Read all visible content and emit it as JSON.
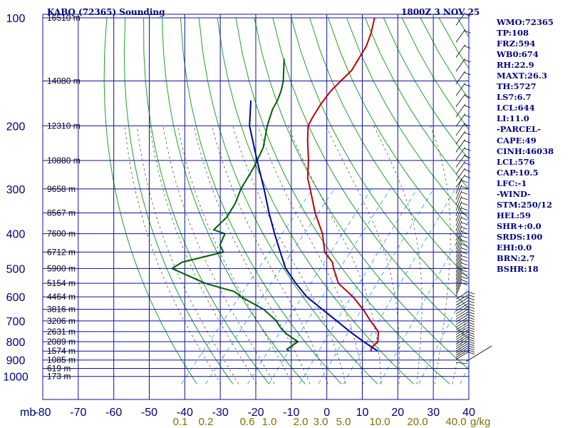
{
  "header": {
    "title": "KABQ (72365) Sounding",
    "datetime": "1800Z  3 NOV 25"
  },
  "parameters": [
    "WMO:72365",
    "TP:108",
    "FRZ:594",
    "WB0:674",
    "RH:22.9",
    "MAXT:26.3",
    "TH:5727",
    "LS7:6.7",
    "LCL:644",
    "LI:11.0",
    "-PARCEL-",
    "CAPE:49",
    "CINH:46038",
    "LCL:576",
    "CAP:10.5",
    "LFC:-1",
    "-WIND-",
    "STM:250/12",
    "HEL:59",
    "SHR+:0.0",
    "SRDS:100",
    "EHI:0.0",
    "BRN:2.7",
    "BSHR:18"
  ],
  "chart_data": {
    "type": "skew-t log-p",
    "pressure_axis": {
      "unit_label": "mb",
      "ticks": [
        100,
        200,
        300,
        400,
        500,
        600,
        700,
        800,
        900,
        1000
      ],
      "scale": "log",
      "range": [
        1050,
        100
      ]
    },
    "temperature_axis": {
      "ticks": [
        -80,
        -70,
        -60,
        -50,
        -40,
        -30,
        -20,
        -10,
        0,
        10,
        20,
        30,
        40
      ],
      "range": [
        -80,
        40
      ]
    },
    "mixing_ratio_labels": [
      "0.1",
      "0.2",
      "0.6",
      "1.0",
      "2.0",
      "3.0",
      "5.0",
      "10.0",
      "20.0",
      "40.0"
    ],
    "mixing_ratio_unit": "g/kg",
    "height_labels": [
      {
        "p": 100,
        "text": "16510 m"
      },
      {
        "p": 150,
        "text": "14080 m"
      },
      {
        "p": 200,
        "text": "12310 m"
      },
      {
        "p": 250,
        "text": "10880 m"
      },
      {
        "p": 300,
        "text": "9658 m"
      },
      {
        "p": 350,
        "text": "8567 m"
      },
      {
        "p": 400,
        "text": "7600 m"
      },
      {
        "p": 450,
        "text": "6712 m"
      },
      {
        "p": 500,
        "text": "5900 m"
      },
      {
        "p": 550,
        "text": "5154 m"
      },
      {
        "p": 600,
        "text": "4464 m"
      },
      {
        "p": 650,
        "text": "3816 m"
      },
      {
        "p": 700,
        "text": "3206 m"
      },
      {
        "p": 750,
        "text": "2631 m"
      },
      {
        "p": 800,
        "text": "2089 m"
      },
      {
        "p": 850,
        "text": "1574 m"
      },
      {
        "p": 900,
        "text": "1085 m"
      },
      {
        "p": 950,
        "text": "619 m"
      },
      {
        "p": 1000,
        "text": "173 m"
      }
    ],
    "series": [
      {
        "color": "#c00000",
        "points": [
          [
            100,
            -62.7
          ],
          [
            110,
            -60.5
          ],
          [
            120,
            -59
          ],
          [
            130,
            -58.5
          ],
          [
            140,
            -58
          ],
          [
            150,
            -58.8
          ],
          [
            160,
            -59.5
          ],
          [
            175,
            -59.5
          ],
          [
            190,
            -59
          ],
          [
            200,
            -58.5
          ],
          [
            220,
            -55.5
          ],
          [
            250,
            -51
          ],
          [
            280,
            -47.5
          ],
          [
            300,
            -44.5
          ],
          [
            350,
            -38
          ],
          [
            400,
            -31.5
          ],
          [
            450,
            -27
          ],
          [
            480,
            -22.7
          ],
          [
            500,
            -21
          ],
          [
            550,
            -16.5
          ],
          [
            600,
            -9.5
          ],
          [
            650,
            -4
          ],
          [
            700,
            0.5
          ],
          [
            750,
            5
          ],
          [
            800,
            7
          ],
          [
            830,
            6.5
          ],
          [
            850,
            7
          ]
        ]
      },
      {
        "color": "#006000",
        "points": [
          [
            130,
            -79.5
          ],
          [
            150,
            -75
          ],
          [
            160,
            -73.5
          ],
          [
            170,
            -72.5
          ],
          [
            180,
            -72
          ],
          [
            200,
            -70
          ],
          [
            230,
            -66.5
          ],
          [
            260,
            -65
          ],
          [
            280,
            -64.5
          ],
          [
            300,
            -64
          ],
          [
            330,
            -62.5
          ],
          [
            360,
            -62
          ],
          [
            390,
            -63
          ],
          [
            400,
            -59
          ],
          [
            430,
            -58
          ],
          [
            450,
            -55.5
          ],
          [
            480,
            -65
          ],
          [
            500,
            -66.5
          ],
          [
            550,
            -54
          ],
          [
            580,
            -44
          ],
          [
            600,
            -41
          ],
          [
            650,
            -32
          ],
          [
            700,
            -26
          ],
          [
            730,
            -23.5
          ],
          [
            760,
            -20.5
          ],
          [
            800,
            -15.5
          ],
          [
            840,
            -17
          ],
          [
            850,
            -16
          ]
        ]
      },
      {
        "color": "#0000a0",
        "points": [
          [
            170,
            -80
          ],
          [
            200,
            -75
          ],
          [
            250,
            -65.5
          ],
          [
            300,
            -57.5
          ],
          [
            350,
            -51
          ],
          [
            400,
            -45
          ],
          [
            450,
            -39.5
          ],
          [
            500,
            -34.5
          ],
          [
            550,
            -28.5
          ],
          [
            600,
            -22.5
          ],
          [
            650,
            -15.5
          ],
          [
            700,
            -9
          ],
          [
            750,
            -3
          ],
          [
            800,
            3
          ],
          [
            850,
            9
          ]
        ]
      }
    ],
    "wind_barbs_present": true,
    "grid": true
  }
}
